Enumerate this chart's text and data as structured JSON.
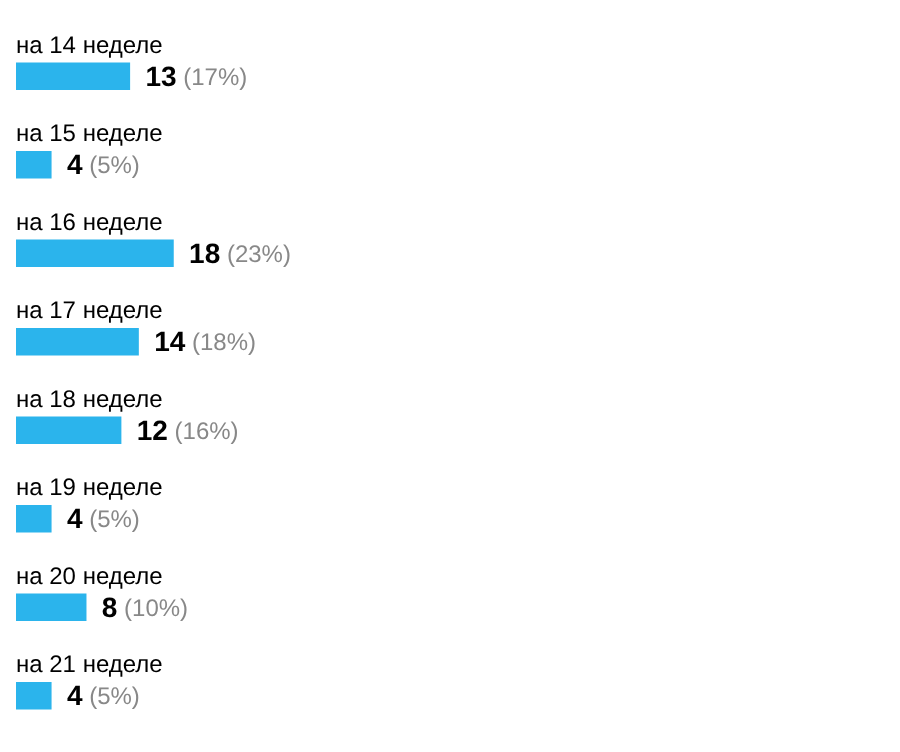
{
  "chart_data": {
    "type": "bar",
    "orientation": "horizontal",
    "categories": [
      "на 14 неделе",
      "на 15 неделе",
      "на 16 неделе",
      "на 17 неделе",
      "на 18 неделе",
      "на 19 неделе",
      "на 20 неделе",
      "на 21 неделе"
    ],
    "values": [
      13,
      4,
      18,
      14,
      12,
      4,
      8,
      4
    ],
    "value_labels": [
      "13 (17%)",
      "4 (5%)",
      "18 (23%)",
      "14 (18%)",
      "12 (16%)",
      "4 (5%)",
      "8 (10%)",
      "4 (5%)"
    ],
    "color": "#2bb4ec"
  }
}
